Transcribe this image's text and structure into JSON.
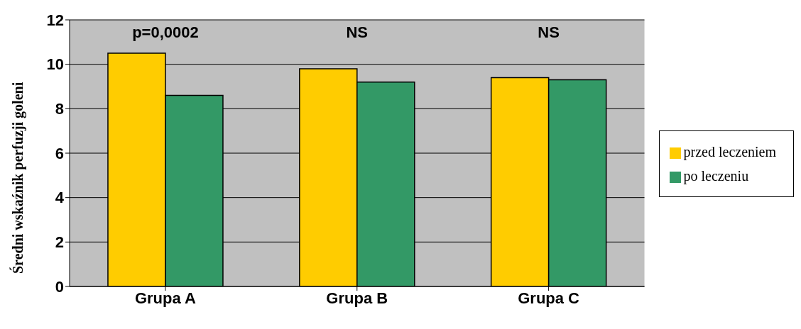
{
  "chart_data": {
    "type": "bar",
    "ylabel": "Średni wskaźnik perfuzji goleni",
    "categories": [
      "Grupa A",
      "Grupa B",
      "Grupa C"
    ],
    "series": [
      {
        "name": "przed leczeniem",
        "color": "#ffcc00",
        "values": [
          10.5,
          9.8,
          9.4
        ]
      },
      {
        "name": "po leczeniu",
        "color": "#339966",
        "values": [
          8.6,
          9.2,
          9.3
        ]
      }
    ],
    "ylim": [
      0,
      12
    ],
    "yticks": [
      0,
      2,
      4,
      6,
      8,
      10,
      12
    ],
    "grid": "y",
    "legend": "right",
    "annotations": [
      "p=0,0002",
      "NS",
      "NS"
    ]
  }
}
